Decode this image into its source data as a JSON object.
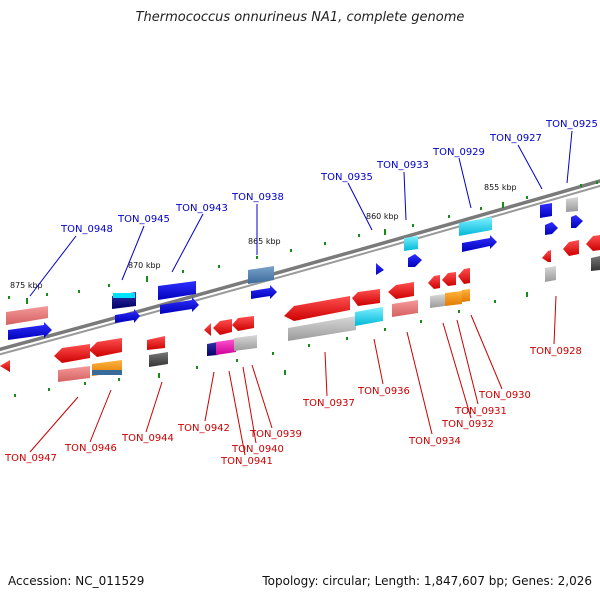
{
  "title": "Thermococcus onnurineus NA1, complete genome",
  "footer": {
    "accession": "Accession: NC_011529",
    "summary": "Topology: circular; Length: 1,847,607 bp; Genes: 2,026"
  },
  "kbp_labels": [
    "875 kbp",
    "870 kbp",
    "865 kbp",
    "860 kbp",
    "855 kbp"
  ],
  "genes_top": [
    "TON_0948",
    "TON_0945",
    "TON_0943",
    "TON_0938",
    "TON_0935",
    "TON_0933",
    "TON_0929",
    "TON_0927",
    "TON_0925"
  ],
  "genes_bottom": [
    "TON_0947",
    "TON_0946",
    "TON_0944",
    "TON_0942",
    "TON_0941",
    "TON_0940",
    "TON_0939",
    "TON_0937",
    "TON_0936",
    "TON_0934",
    "TON_0932",
    "TON_0931",
    "TON_0930",
    "TON_0928"
  ],
  "colors": {
    "forward": "#0000ee",
    "reverse": "#ee0000",
    "backbone": "#808080",
    "tick": "#1a8a1a"
  }
}
